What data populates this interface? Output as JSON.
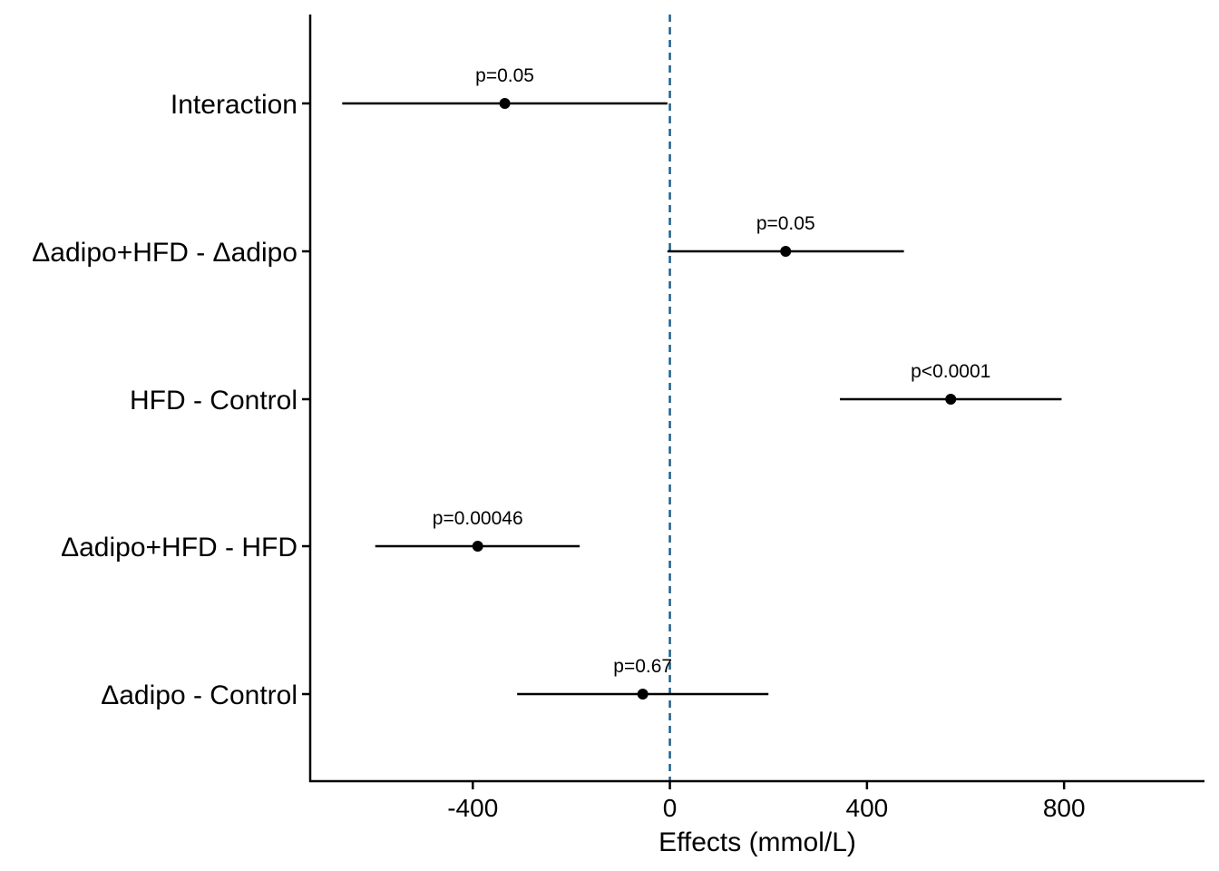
{
  "chart_data": {
    "type": "forest",
    "title": "",
    "xlabel": "Effects (mmol/L)",
    "ylabel": "",
    "xlim": [
      -730,
      1085
    ],
    "xticks": [
      -400,
      0,
      400,
      800
    ],
    "xtick_labels": [
      "-400",
      "0",
      "400",
      "800"
    ],
    "reference_line": {
      "x": 0,
      "style": "dashed",
      "color": "#1F5F8B"
    },
    "grid": false,
    "colors": {
      "point": "#000000",
      "line": "#000000",
      "axis": "#000000"
    },
    "rows": [
      {
        "label": "Interaction",
        "estimate": -335,
        "lower": -665,
        "upper": -5,
        "p_label": "p=0.05"
      },
      {
        "label": "Δadipo+HFD - Δadipo",
        "estimate": 235,
        "lower": -5,
        "upper": 475,
        "p_label": "p=0.05"
      },
      {
        "label": "HFD - Control",
        "estimate": 570,
        "lower": 345,
        "upper": 795,
        "p_label": "p<0.0001"
      },
      {
        "label": "Δadipo+HFD - HFD",
        "estimate": -390,
        "lower": -598,
        "upper": -183,
        "p_label": "p=0.00046"
      },
      {
        "label": "Δadipo - Control",
        "estimate": -55,
        "lower": -310,
        "upper": 200,
        "p_label": "p=0.67"
      }
    ]
  }
}
